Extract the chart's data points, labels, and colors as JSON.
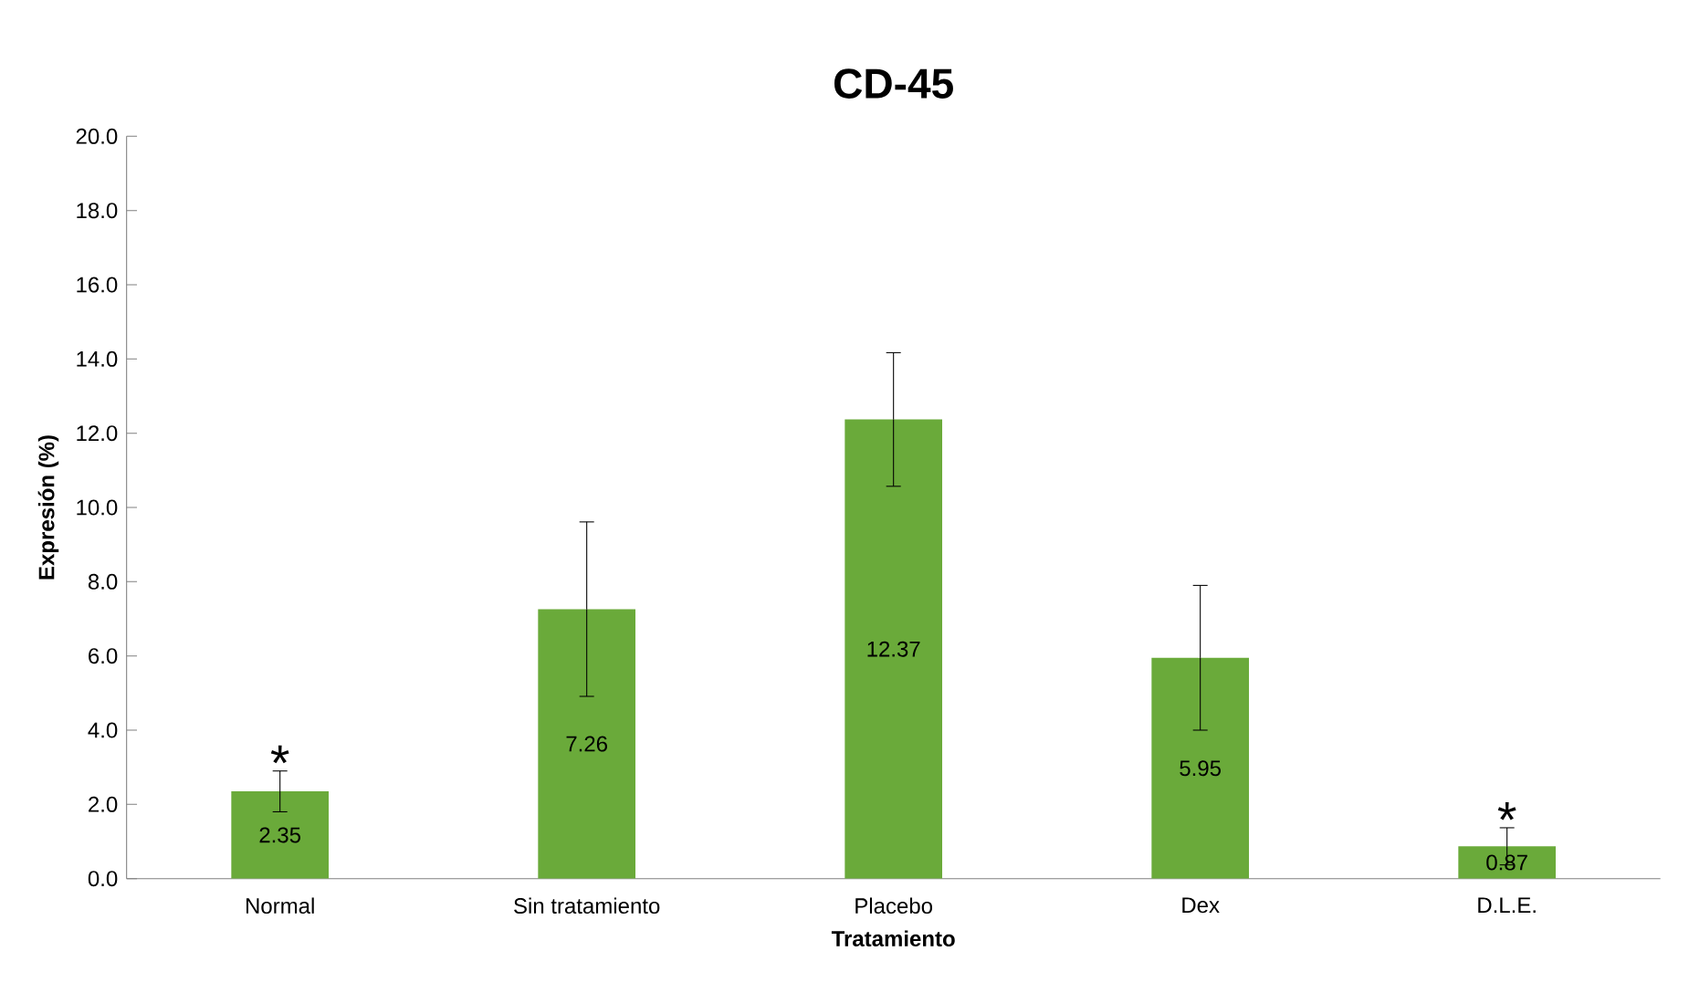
{
  "chart_data": {
    "type": "bar",
    "title": "CD-45",
    "xlabel": "Tratamiento",
    "ylabel": "Expresión (%)",
    "categories": [
      "Normal",
      "Sin tratamiento",
      "Placebo",
      "Dex",
      "D.L.E."
    ],
    "values": [
      2.35,
      7.26,
      12.37,
      5.95,
      0.87
    ],
    "errors": [
      0.55,
      2.35,
      1.8,
      1.95,
      0.5
    ],
    "color": "#6aaa3a",
    "data_labels": true,
    "grid": false,
    "ylim": [
      0,
      20
    ],
    "yticks": [
      {
        "value": 0,
        "label": "0.0"
      },
      {
        "value": 2,
        "label": "2.0"
      },
      {
        "value": 4,
        "label": "4.0"
      },
      {
        "value": 6,
        "label": "6.0"
      },
      {
        "value": 8,
        "label": "8.0"
      },
      {
        "value": 10,
        "label": "10.0"
      },
      {
        "value": 12,
        "label": "12.0"
      },
      {
        "value": 14,
        "label": "14.0"
      },
      {
        "value": 16,
        "label": "16.0"
      },
      {
        "value": 18,
        "label": "18.0"
      },
      {
        "value": 20,
        "label": "20.0"
      }
    ],
    "annotations": [
      {
        "text": "*",
        "x": "Normal",
        "y": 2.9
      },
      {
        "text": "*",
        "x": "D.L.E.",
        "y": 1.37
      }
    ]
  }
}
